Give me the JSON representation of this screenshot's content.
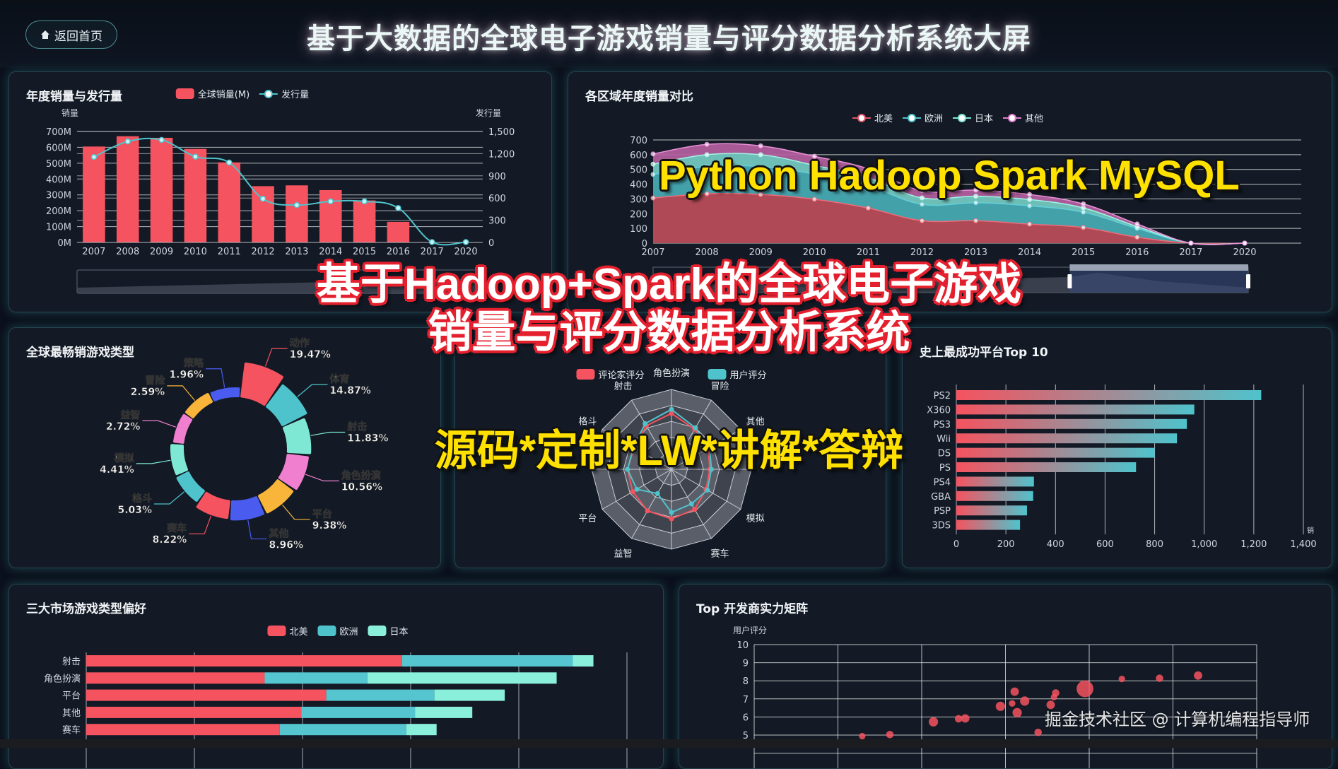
{
  "header": {
    "back_label": "返回首页",
    "back_icon": "home-icon",
    "title": "基于大数据的全球电子游戏销量与评分数据分析系统大屏"
  },
  "overlays": {
    "tech": "Python Hadoop Spark MySQL",
    "line1": "基于Hadoop+Spark的全球电子游戏",
    "line2": "销量与评分数据分析系统",
    "services": "源码*定制*LW*讲解*答辩"
  },
  "watermark": "掘金技术社区 @ 计算机编程指导师",
  "colors": {
    "red": "#f5535f",
    "teal": "#4fc3cc",
    "mint": "#7ee8d4",
    "pink": "#f07fd0",
    "orange": "#f8b53a",
    "blue": "#4a5cf0"
  },
  "chart_data": [
    {
      "type": "bar+line",
      "title": "年度销量与发行量",
      "legend": [
        "全球销量(M)",
        "发行量"
      ],
      "ylabel": "销量",
      "y2label": "发行量",
      "categories": [
        "2007",
        "2008",
        "2009",
        "2010",
        "2011",
        "2012",
        "2013",
        "2014",
        "2015",
        "2016",
        "2017",
        "2020"
      ],
      "yticks": [
        "0M",
        "100M",
        "200M",
        "300M",
        "400M",
        "500M",
        "600M",
        "700M"
      ],
      "y2ticks": [
        "0",
        "300",
        "600",
        "900",
        "1,200",
        "1,500"
      ],
      "ylim": [
        0,
        700
      ],
      "y2lim": [
        0,
        1500
      ],
      "series": [
        {
          "name": "全球销量(M)",
          "type": "bar",
          "axis": "left",
          "values": [
            605,
            670,
            660,
            590,
            505,
            355,
            360,
            330,
            265,
            130,
            0,
            0
          ]
        },
        {
          "name": "发行量",
          "type": "line",
          "axis": "right",
          "smooth": true,
          "values": [
            1155,
            1365,
            1385,
            1160,
            1080,
            590,
            505,
            555,
            555,
            465,
            5,
            5
          ]
        }
      ],
      "grid": true,
      "data_zoom": true
    },
    {
      "type": "area",
      "stacked": true,
      "title": "各区域年度销量对比",
      "legend": [
        "北美",
        "欧洲",
        "日本",
        "其他"
      ],
      "categories": [
        "2007",
        "2008",
        "2009",
        "2010",
        "2011",
        "2012",
        "2013",
        "2014",
        "2015",
        "2016",
        "2017",
        "2020"
      ],
      "yticks": [
        "0",
        "100",
        "200",
        "300",
        "400",
        "500",
        "600",
        "700"
      ],
      "ylim": [
        0,
        700
      ],
      "series": [
        {
          "name": "北美",
          "values": [
            306,
            335,
            330,
            298,
            238,
            152,
            152,
            129,
            106,
            40,
            0,
            0
          ]
        },
        {
          "name": "欧洲",
          "values": [
            160,
            185,
            190,
            170,
            150,
            111,
            122,
            124,
            104,
            60,
            0,
            0
          ]
        },
        {
          "name": "日本",
          "values": [
            70,
            80,
            80,
            60,
            55,
            44,
            44,
            43,
            29,
            13,
            0,
            0
          ]
        },
        {
          "name": "其他",
          "values": [
            69,
            70,
            60,
            61,
            62,
            48,
            42,
            34,
            27,
            17,
            0,
            0
          ]
        }
      ],
      "grid": true,
      "data_zoom": true,
      "data_zoom_range": [
        0.7,
        1.0
      ]
    },
    {
      "type": "pie",
      "rose": true,
      "title": "全球最畅销游戏类型",
      "slices": [
        {
          "name": "动作",
          "value": 19.47,
          "label": "19.47%"
        },
        {
          "name": "体育",
          "value": 14.87,
          "label": "14.87%"
        },
        {
          "name": "射击",
          "value": 11.83,
          "label": "11.83%"
        },
        {
          "name": "角色扮演",
          "value": 10.56,
          "label": "10.56%"
        },
        {
          "name": "平台",
          "value": 9.38,
          "label": "9.38%"
        },
        {
          "name": "其他",
          "value": 8.96,
          "label": "8.96%"
        },
        {
          "name": "赛车",
          "value": 8.22,
          "label": "8.22%"
        },
        {
          "name": "格斗",
          "value": 5.03,
          "label": "5.03%"
        },
        {
          "name": "模拟",
          "value": 4.41,
          "label": "4.41%"
        },
        {
          "name": "益智",
          "value": 2.72,
          "label": "2.72%"
        },
        {
          "name": "冒险",
          "value": 2.59,
          "label": "2.59%"
        },
        {
          "name": "策略",
          "value": 1.96,
          "label": "1.96%"
        }
      ]
    },
    {
      "type": "radar",
      "legend": [
        "评论家评分",
        "用户评分"
      ],
      "indicators": [
        "角色扮演",
        "冒险",
        "其他",
        "",
        "模拟",
        "赛车",
        "",
        "益智",
        "平台",
        "",
        "格斗",
        "射击"
      ],
      "max": 10,
      "series": [
        {
          "name": "评论家评分",
          "values": [
            7.0,
            5.8,
            5.3,
            4.8,
            5.0,
            5.8,
            6.2,
            6.0,
            5.6,
            5.5,
            5.4,
            6.3
          ]
        },
        {
          "name": "用户评分",
          "values": [
            7.5,
            6.0,
            5.5,
            5.0,
            5.2,
            5.0,
            5.4,
            3.5,
            5.0,
            5.5,
            5.5,
            6.6
          ]
        }
      ]
    },
    {
      "type": "bar",
      "orientation": "horizontal",
      "title": "史上最成功平台Top 10",
      "categories": [
        "PS2",
        "X360",
        "PS3",
        "Wii",
        "DS",
        "PS",
        "PS4",
        "GBA",
        "PSP",
        "3DS"
      ],
      "values": [
        1230,
        960,
        930,
        890,
        800,
        725,
        313,
        310,
        285,
        257
      ],
      "xticks": [
        "0",
        "200",
        "400",
        "600",
        "800",
        "1,000",
        "1,200",
        "1,400"
      ],
      "xlim": [
        0,
        1400
      ],
      "xlabel": "销",
      "gradient": [
        "#f5535f",
        "#4fc3cc"
      ]
    },
    {
      "type": "bar",
      "orientation": "horizontal",
      "stacked": true,
      "title": "三大市场游戏类型偏好",
      "legend": [
        "北美",
        "欧洲",
        "日本"
      ],
      "categories": [
        "射击",
        "角色扮演",
        "平台",
        "其他",
        "赛车"
      ],
      "xlim": [
        0,
        500
      ],
      "series": [
        {
          "name": "北美",
          "values": [
            292,
            165,
            222,
            199,
            179
          ]
        },
        {
          "name": "欧洲",
          "values": [
            158,
            95,
            100,
            105,
            117
          ]
        },
        {
          "name": "日本",
          "values": [
            19,
            175,
            65,
            53,
            28
          ]
        }
      ]
    },
    {
      "type": "scatter",
      "title": "Top 开发商实力矩阵",
      "ylabel": "用户评分",
      "yticks": [
        "5",
        "6",
        "7",
        "8",
        "9",
        "10"
      ],
      "ylim": [
        5,
        10
      ],
      "xlim": [
        0,
        6
      ],
      "points": [
        {
          "x": 1.29,
          "y": 4.94,
          "size": 14
        },
        {
          "x": 1.62,
          "y": 5.03,
          "size": 16
        },
        {
          "x": 2.14,
          "y": 5.73,
          "size": 20
        },
        {
          "x": 2.44,
          "y": 5.9,
          "size": 16
        },
        {
          "x": 2.52,
          "y": 5.92,
          "size": 18
        },
        {
          "x": 2.94,
          "y": 6.59,
          "size": 20
        },
        {
          "x": 3.11,
          "y": 7.4,
          "size": 18
        },
        {
          "x": 3.14,
          "y": 6.24,
          "size": 20
        },
        {
          "x": 3.23,
          "y": 6.88,
          "size": 20
        },
        {
          "x": 3.08,
          "y": 6.75,
          "size": 14
        },
        {
          "x": 3.39,
          "y": 5.15,
          "size": 16
        },
        {
          "x": 3.54,
          "y": 6.67,
          "size": 18
        },
        {
          "x": 3.6,
          "y": 7.33,
          "size": 16
        },
        {
          "x": 3.58,
          "y": 7.1,
          "size": 14
        },
        {
          "x": 3.95,
          "y": 7.56,
          "size": 36
        },
        {
          "x": 4.39,
          "y": 8.1,
          "size": 14
        },
        {
          "x": 4.84,
          "y": 8.14,
          "size": 16
        },
        {
          "x": 5.3,
          "y": 8.29,
          "size": 18
        }
      ],
      "grid": true
    }
  ]
}
